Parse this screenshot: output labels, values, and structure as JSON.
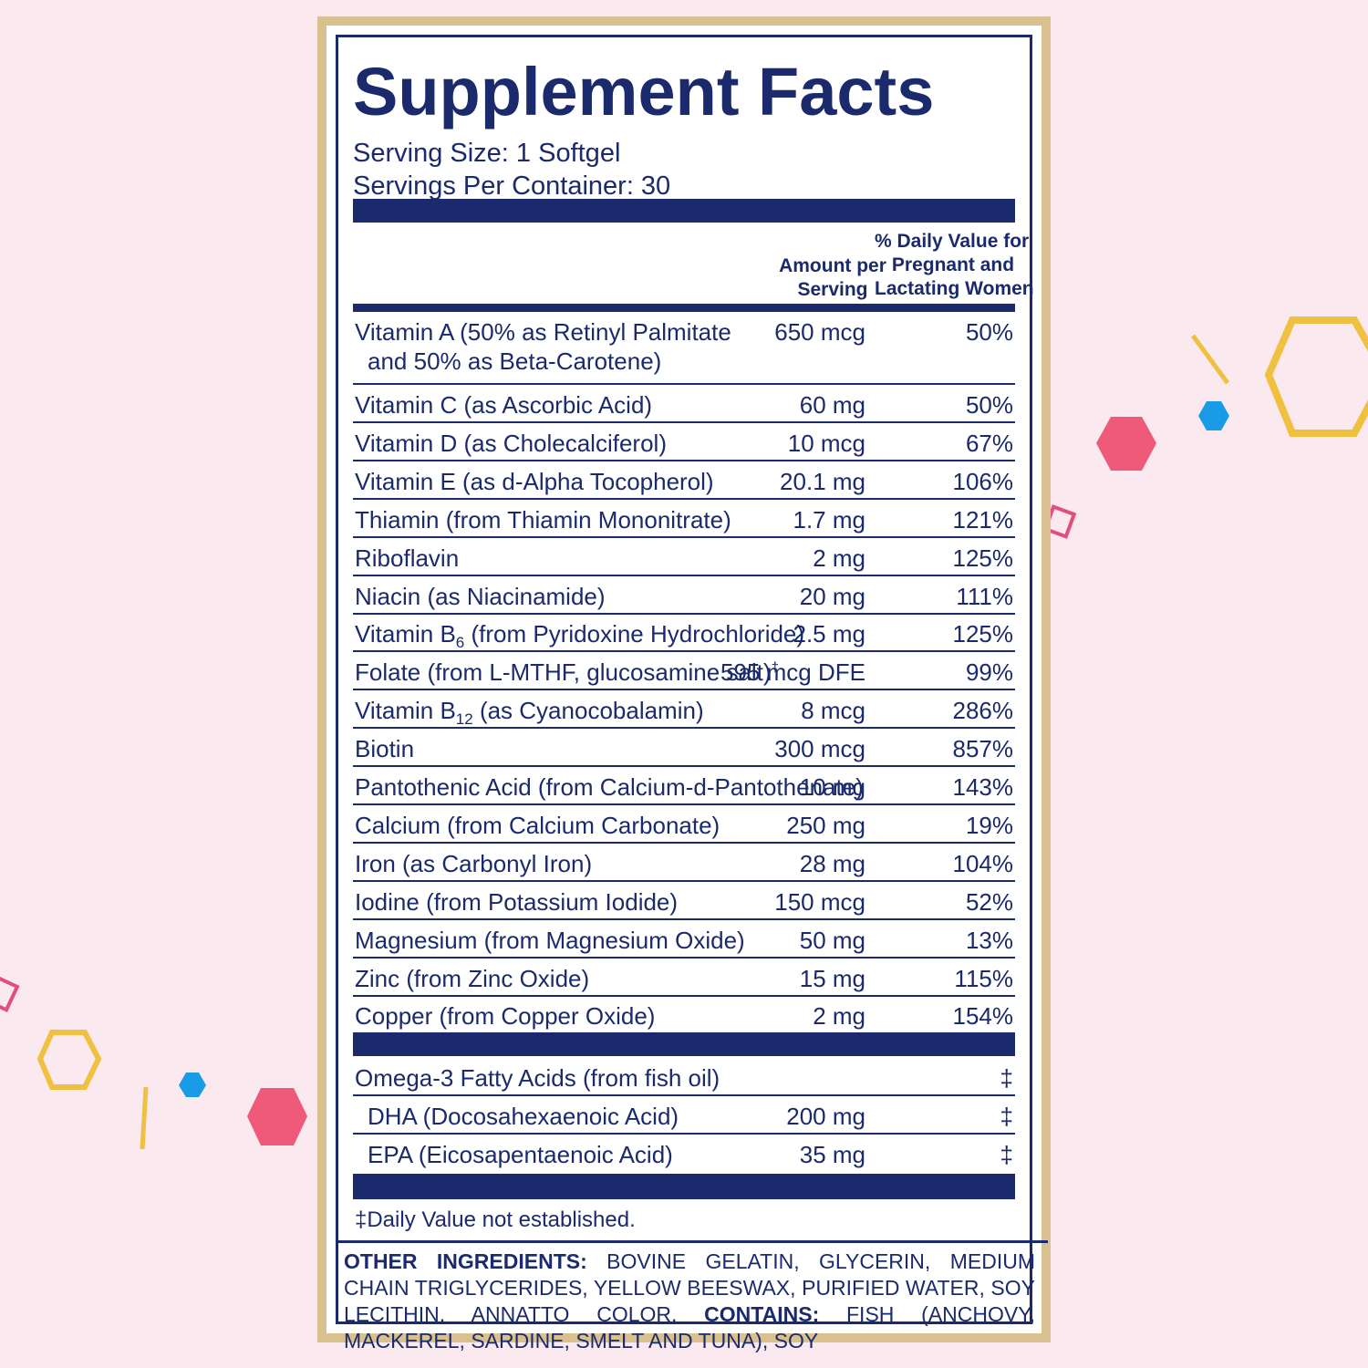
{
  "colors": {
    "navy": "#1a2a6c",
    "gold": "#d8c08f",
    "background": "#fae9ef",
    "pink": "#ef5a7a",
    "blue": "#1a9be8",
    "yellow": "#f0c040"
  },
  "label": {
    "title": "Supplement Facts",
    "serving_size": "Serving Size: 1 Softgel",
    "servings_per_container": "Servings Per Container: 30",
    "header_amount_line1": "Amount per",
    "header_amount_line2": "Serving",
    "header_dv_line1": "% Daily Value for",
    "header_dv_line2": "Pregnant and",
    "header_dv_line3": "Lactating Women",
    "vitamin_a_line1": "Vitamin A (50% as Retinyl Palmitate",
    "vitamin_a_line2": "and 50% as Beta-Carotene)",
    "vitamin_a_amount": "650 mcg",
    "vitamin_a_dv": "50%",
    "nutrients": [
      {
        "name": "Vitamin C (as Ascorbic Acid)",
        "amount": "60 mg",
        "dv": "50%"
      },
      {
        "name": "Vitamin D (as Cholecalciferol)",
        "amount": "10 mcg",
        "dv": "67%"
      },
      {
        "name": "Vitamin E (as d-Alpha Tocopherol)",
        "amount": "20.1 mg",
        "dv": "106%"
      },
      {
        "name": "Thiamin (from Thiamin Mononitrate)",
        "amount": "1.7 mg",
        "dv": "121%"
      },
      {
        "name": "Riboflavin",
        "amount": "2 mg",
        "dv": "125%"
      },
      {
        "name": "Niacin (as Niacinamide)",
        "amount": "20 mg",
        "dv": "111%"
      },
      {
        "name_pre": "Vitamin B",
        "name_sub": "6",
        "name_post": " (from Pyridoxine Hydrochloride)",
        "amount": "2.5 mg",
        "dv": "125%"
      },
      {
        "name_pre": "Folate (from L-MTHF, glucosamine salt)",
        "name_sup": "†",
        "amount": "595 mcg DFE",
        "dv": "99%"
      },
      {
        "name_pre": "Vitamin B",
        "name_sub": "12",
        "name_post": " (as Cyanocobalamin)",
        "amount": "8 mcg",
        "dv": "286%"
      },
      {
        "name": "Biotin",
        "amount": "300 mcg",
        "dv": "857%"
      },
      {
        "name": "Pantothenic Acid (from Calcium-d-Pantothenate)",
        "amount": "10 mg",
        "dv": "143%"
      },
      {
        "name": "Calcium (from Calcium Carbonate)",
        "amount": "250 mg",
        "dv": "19%"
      },
      {
        "name": "Iron (as Carbonyl Iron)",
        "amount": "28 mg",
        "dv": "104%"
      },
      {
        "name": "Iodine (from Potassium Iodide)",
        "amount": "150 mcg",
        "dv": "52%"
      },
      {
        "name": "Magnesium (from Magnesium Oxide)",
        "amount": "50 mg",
        "dv": "13%"
      },
      {
        "name": "Zinc (from Zinc Oxide)",
        "amount": "15 mg",
        "dv": "115%"
      },
      {
        "name": "Copper (from Copper Oxide)",
        "amount": "2 mg",
        "dv": "154%"
      }
    ],
    "omega": [
      {
        "name": "Omega-3 Fatty Acids (from fish oil)",
        "amount": "",
        "dv": "‡",
        "indent": false
      },
      {
        "name": "DHA (Docosahexaenoic Acid)",
        "amount": "200 mg",
        "dv": "‡",
        "indent": true
      },
      {
        "name": "EPA (Eicosapentaenoic Acid)",
        "amount": "35 mg",
        "dv": "‡",
        "indent": true
      }
    ],
    "footnote": "‡Daily Value not established.",
    "other_ingredients_label": "OTHER INGREDIENTS:",
    "other_ingredients_text": " BOVINE GELATIN, GLYCERIN, MEDIUM CHAIN TRIGLYCERIDES, YELLOW BEESWAX, PURIFIED WATER, SOY LECITHIN, ANNATTO COLOR. ",
    "contains_label": "CONTAINS:",
    "contains_text": " FISH (ANCHOVY, MACKEREL, SARDINE, SMELT AND TUNA), SOY"
  }
}
